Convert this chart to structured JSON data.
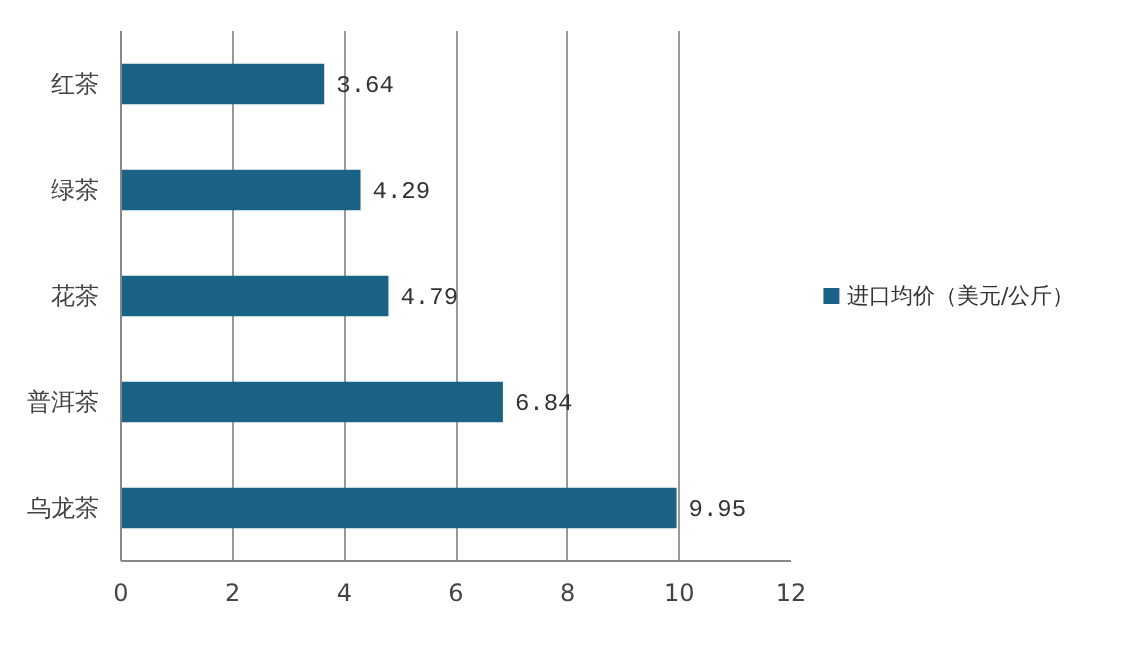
{
  "chart_data": {
    "type": "bar",
    "orientation": "horizontal",
    "categories": [
      "红茶",
      "绿茶",
      "花茶",
      "普洱茶",
      "乌龙茶"
    ],
    "series": [
      {
        "name": "进口均价（美元/公斤）",
        "color": "#1b6386",
        "values": [
          3.64,
          4.29,
          4.79,
          6.84,
          9.95
        ]
      }
    ],
    "xlim": [
      0,
      12
    ],
    "xticks": [
      0,
      2,
      4,
      6,
      8,
      10,
      12
    ],
    "grid": "x",
    "legend": "right",
    "data_labels": true
  }
}
